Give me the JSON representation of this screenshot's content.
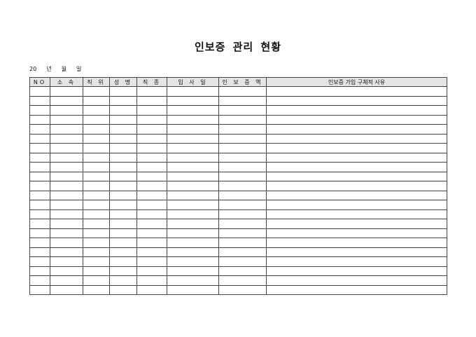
{
  "title": "인보증 관리 현황",
  "date_line": {
    "year_prefix": "20",
    "year": "년",
    "month": "월",
    "day": "일"
  },
  "table": {
    "headers": [
      "NO",
      "소 속",
      "직 위",
      "성 명",
      "직 종",
      "입 사 일",
      "인 보 증 액",
      "인보증 가입 구체적 사유"
    ],
    "row_count": 22
  }
}
